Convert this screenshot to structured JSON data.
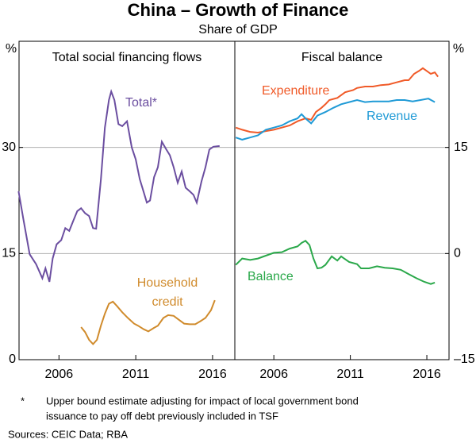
{
  "title": "China – Growth of Finance",
  "subtitle": "Share of GDP",
  "footnote": {
    "marker": "*",
    "lines": [
      "Upper bound estimate adjusting for impact of local government bond",
      "issuance to pay off debt previously included in TSF"
    ]
  },
  "sources": "Sources:   CEIC Data; RBA",
  "chart_data": [
    {
      "type": "line",
      "title": "Total social financing flows",
      "y_label": "%",
      "y_axis_side": "left",
      "grid": true,
      "xlim": [
        2003.4,
        2017.45
      ],
      "xticks": [
        2006,
        2011,
        2016
      ],
      "ylim": [
        0,
        45
      ],
      "yticks": [
        0,
        15,
        30
      ],
      "series": [
        {
          "name": "Total*",
          "color": "#6b4ea0",
          "x": [
            2003.37,
            2003.68,
            2004.09,
            2004.51,
            2004.92,
            2005.12,
            2005.38,
            2005.59,
            2005.85,
            2006.15,
            2006.41,
            2006.67,
            2006.93,
            2007.19,
            2007.44,
            2007.7,
            2007.96,
            2008.22,
            2008.42,
            2008.73,
            2008.99,
            2009.25,
            2009.4,
            2009.61,
            2009.87,
            2010.12,
            2010.43,
            2010.74,
            2011.0,
            2011.26,
            2011.46,
            2011.72,
            2011.93,
            2012.19,
            2012.44,
            2012.7,
            2012.96,
            2013.22,
            2013.47,
            2013.73,
            2013.99,
            2014.25,
            2014.51,
            2014.76,
            2014.97,
            2015.28,
            2015.54,
            2015.79,
            2016.05,
            2016.46
          ],
          "values": [
            23.8,
            19.9,
            14.9,
            13.5,
            11.5,
            12.9,
            11.0,
            14.3,
            16.3,
            16.9,
            18.6,
            18.2,
            19.6,
            21.0,
            21.4,
            20.7,
            20.3,
            18.6,
            18.5,
            25.5,
            32.8,
            36.7,
            37.9,
            36.7,
            33.3,
            33.0,
            33.7,
            30.0,
            28.3,
            25.5,
            24.1,
            22.2,
            22.5,
            25.8,
            27.2,
            30.8,
            29.8,
            28.9,
            27.2,
            25.0,
            26.6,
            24.3,
            23.8,
            23.3,
            22.2,
            25.2,
            27.2,
            29.7,
            30.1,
            30.2
          ]
        },
        {
          "name": "Household credit",
          "color": "#d08b2c",
          "x": [
            2007.44,
            2007.7,
            2007.96,
            2008.22,
            2008.47,
            2008.73,
            2008.99,
            2009.25,
            2009.51,
            2009.77,
            2010.12,
            2010.48,
            2010.89,
            2011.15,
            2011.52,
            2011.82,
            2012.19,
            2012.44,
            2012.8,
            2013.11,
            2013.47,
            2013.83,
            2014.15,
            2014.51,
            2014.87,
            2015.18,
            2015.54,
            2015.9,
            2016.15
          ],
          "values": [
            4.6,
            3.9,
            2.8,
            2.2,
            2.8,
            4.8,
            6.5,
            7.9,
            8.2,
            7.6,
            6.7,
            5.9,
            5.1,
            4.8,
            4.3,
            4.0,
            4.5,
            4.8,
            5.9,
            6.3,
            6.2,
            5.6,
            5.1,
            5.0,
            5.0,
            5.4,
            5.9,
            7.0,
            8.4
          ]
        }
      ]
    },
    {
      "type": "line",
      "title": "Fiscal balance",
      "y_label": "%",
      "y_axis_side": "right",
      "grid": true,
      "xlim": [
        2003.45,
        2017.45
      ],
      "xticks": [
        2006,
        2011,
        2016
      ],
      "ylim": [
        -15,
        30
      ],
      "yticks": [
        {
          "value": -15,
          "label": "–15"
        },
        0,
        15
      ],
      "series": [
        {
          "name": "Expenditure",
          "color": "#f05a28",
          "x": [
            2003.51,
            2003.93,
            2004.45,
            2004.96,
            2005.48,
            2006.0,
            2006.52,
            2007.04,
            2007.55,
            2008.07,
            2008.44,
            2008.75,
            2009.11,
            2009.37,
            2009.63,
            2010.15,
            2010.66,
            2011.18,
            2011.44,
            2011.96,
            2012.48,
            2012.99,
            2013.51,
            2014.03,
            2014.55,
            2014.81,
            2015.17,
            2015.48,
            2015.74,
            2016.0,
            2016.26,
            2016.52,
            2016.73
          ],
          "values": [
            17.8,
            17.5,
            17.2,
            17.1,
            17.3,
            17.5,
            17.8,
            18.1,
            18.7,
            19.1,
            18.9,
            20.0,
            20.6,
            21.1,
            21.7,
            22.0,
            22.8,
            23.1,
            23.4,
            23.6,
            23.6,
            23.8,
            23.9,
            24.2,
            24.5,
            24.5,
            25.4,
            25.8,
            26.2,
            25.8,
            25.4,
            25.6,
            25.0
          ]
        },
        {
          "name": "Revenue",
          "color": "#1f9ad6",
          "x": [
            2003.51,
            2003.93,
            2004.45,
            2004.96,
            2005.48,
            2006.0,
            2006.52,
            2007.04,
            2007.55,
            2007.81,
            2008.07,
            2008.44,
            2008.85,
            2009.37,
            2009.89,
            2010.4,
            2010.92,
            2011.44,
            2011.96,
            2012.48,
            2012.99,
            2013.51,
            2014.03,
            2014.55,
            2015.07,
            2015.59,
            2016.1,
            2016.52
          ],
          "values": [
            16.4,
            16.1,
            16.4,
            16.7,
            17.5,
            17.8,
            18.1,
            18.7,
            19.1,
            19.7,
            19.1,
            18.4,
            19.5,
            20.0,
            20.6,
            21.1,
            21.4,
            21.7,
            21.4,
            21.5,
            21.5,
            21.5,
            21.7,
            21.7,
            21.5,
            21.7,
            21.9,
            21.4
          ]
        },
        {
          "name": "Balance",
          "color": "#2aa84a",
          "x": [
            2003.51,
            2003.93,
            2004.45,
            2004.96,
            2005.48,
            2006.0,
            2006.52,
            2007.04,
            2007.55,
            2007.81,
            2008.07,
            2008.33,
            2008.59,
            2008.85,
            2009.11,
            2009.37,
            2009.78,
            2010.15,
            2010.4,
            2010.92,
            2011.44,
            2011.7,
            2012.22,
            2012.74,
            2013.25,
            2013.77,
            2014.29,
            2014.81,
            2015.33,
            2015.84,
            2016.26,
            2016.52
          ],
          "values": [
            -1.6,
            -0.7,
            -0.9,
            -0.7,
            -0.3,
            0.1,
            0.2,
            0.7,
            1.0,
            1.5,
            1.8,
            1.2,
            -0.7,
            -2.1,
            -2.0,
            -1.6,
            -0.4,
            -1.0,
            -0.4,
            -1.2,
            -1.5,
            -2.1,
            -2.1,
            -1.8,
            -2.0,
            -2.1,
            -2.3,
            -2.9,
            -3.5,
            -4.0,
            -4.3,
            -4.1
          ]
        }
      ]
    }
  ]
}
